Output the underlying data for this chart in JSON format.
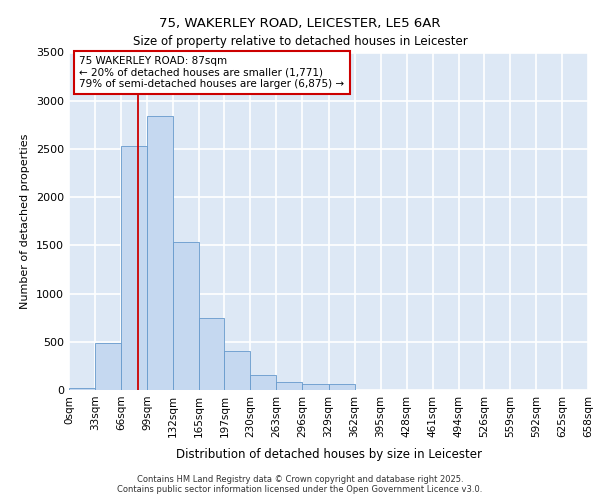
{
  "title_line1": "75, WAKERLEY ROAD, LEICESTER, LE5 6AR",
  "title_line2": "Size of property relative to detached houses in Leicester",
  "xlabel": "Distribution of detached houses by size in Leicester",
  "ylabel": "Number of detached properties",
  "annotation_title": "75 WAKERLEY ROAD: 87sqm",
  "annotation_line2": "← 20% of detached houses are smaller (1,771)",
  "annotation_line3": "79% of semi-detached houses are larger (6,875) →",
  "property_sqm": 87,
  "bin_edges": [
    0,
    33,
    66,
    99,
    132,
    165,
    197,
    230,
    263,
    296,
    329,
    362,
    395,
    428,
    461,
    494,
    526,
    559,
    592,
    625,
    658
  ],
  "bin_labels": [
    "0sqm",
    "33sqm",
    "66sqm",
    "99sqm",
    "132sqm",
    "165sqm",
    "197sqm",
    "230sqm",
    "263sqm",
    "296sqm",
    "329sqm",
    "362sqm",
    "395sqm",
    "428sqm",
    "461sqm",
    "494sqm",
    "526sqm",
    "559sqm",
    "592sqm",
    "625sqm",
    "658sqm"
  ],
  "bar_heights": [
    20,
    490,
    2530,
    2840,
    1540,
    750,
    400,
    160,
    80,
    60,
    60,
    0,
    0,
    0,
    0,
    0,
    0,
    0,
    0,
    0
  ],
  "bar_color": "#c5d8f0",
  "bar_edgecolor": "#6699cc",
  "vline_x": 87,
  "vline_color": "#cc0000",
  "ylim": [
    0,
    3500
  ],
  "yticks": [
    0,
    500,
    1000,
    1500,
    2000,
    2500,
    3000,
    3500
  ],
  "bg_color": "#dde8f5",
  "grid_color": "#ffffff",
  "footer_line1": "Contains HM Land Registry data © Crown copyright and database right 2025.",
  "footer_line2": "Contains public sector information licensed under the Open Government Licence v3.0."
}
